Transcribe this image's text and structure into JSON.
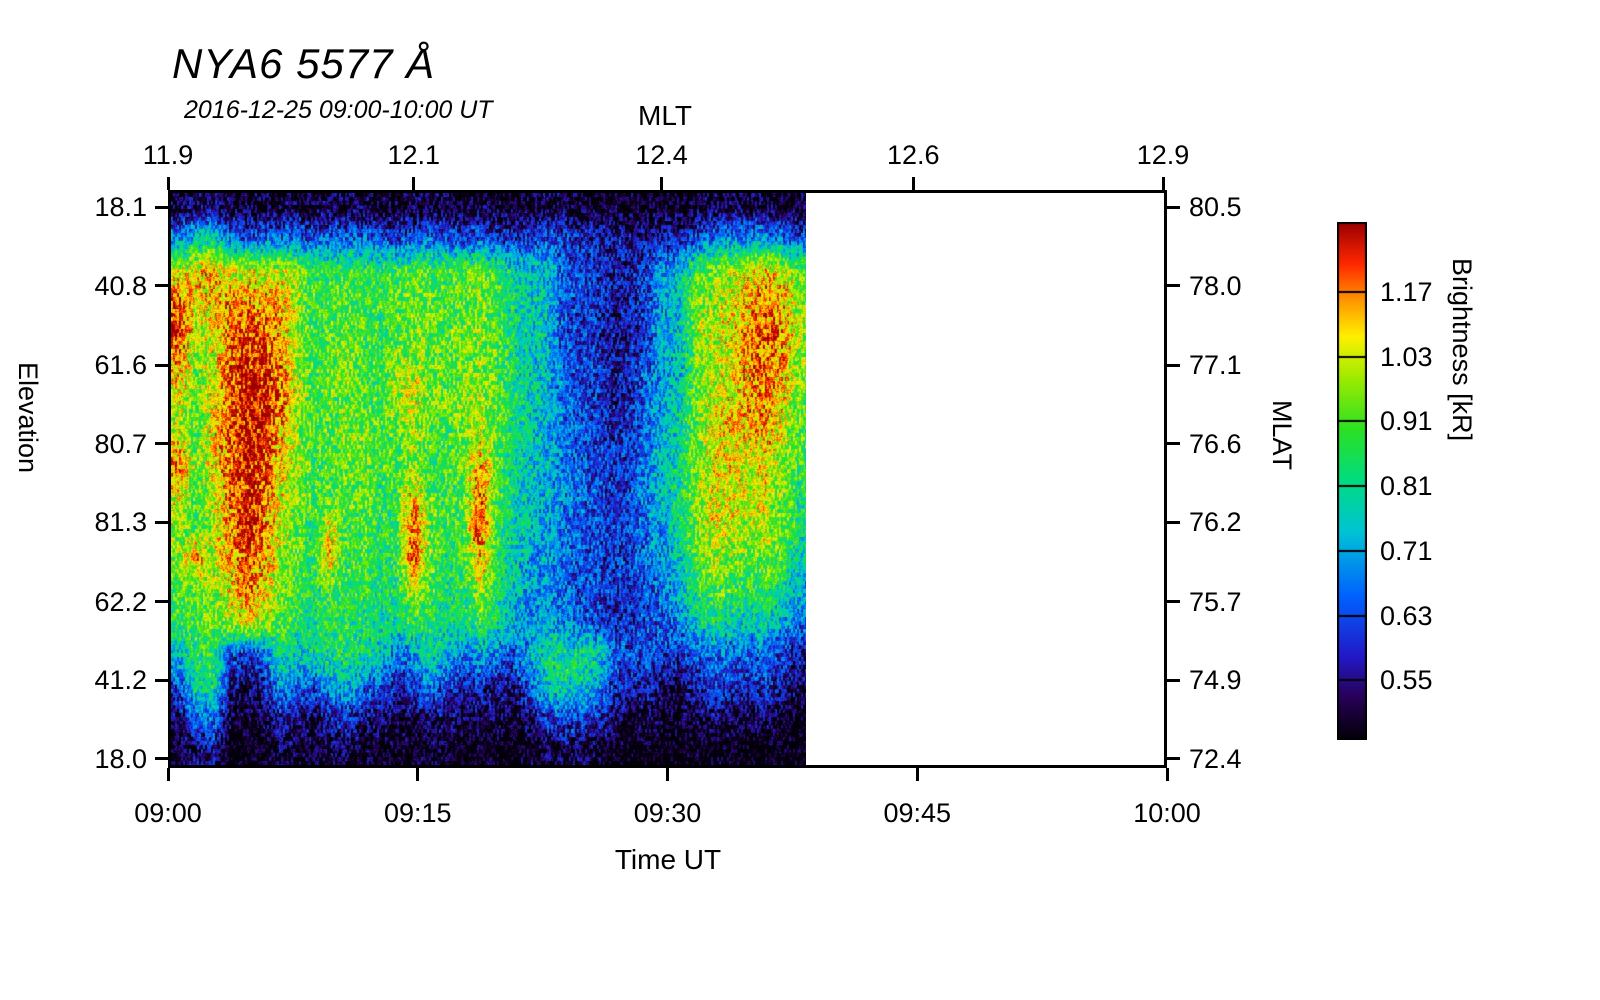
{
  "chart_data": {
    "type": "heatmap",
    "title": "NYA6 5577 Å",
    "subtitle": "2016-12-25 09:00-10:00 UT",
    "time_range": [
      "09:00",
      "10:00"
    ],
    "data_extent_fraction": 0.639,
    "value_scale": "log",
    "value_min": 0.48,
    "value_max": 1.28,
    "value_units": "kR",
    "axes": {
      "top": {
        "label": "MLT",
        "ticks": [
          {
            "label": "11.9",
            "f": 0.0
          },
          {
            "label": "12.1",
            "f": 0.246
          },
          {
            "label": "12.4",
            "f": 0.494
          },
          {
            "label": "12.6",
            "f": 0.746
          },
          {
            "label": "12.9",
            "f": 0.996
          }
        ]
      },
      "bottom": {
        "label": "Time UT",
        "ticks": [
          {
            "label": "09:00",
            "f": 0.0
          },
          {
            "label": "09:15",
            "f": 0.25
          },
          {
            "label": "09:30",
            "f": 0.5
          },
          {
            "label": "09:45",
            "f": 0.75
          },
          {
            "label": "10:00",
            "f": 1.0
          }
        ]
      },
      "left": {
        "label": "Elevation",
        "ticks": [
          {
            "label": "18.1",
            "f": 0.03
          },
          {
            "label": "40.8",
            "f": 0.166
          },
          {
            "label": "61.6",
            "f": 0.303
          },
          {
            "label": "80.7",
            "f": 0.439
          },
          {
            "label": "81.3",
            "f": 0.575
          },
          {
            "label": "62.2",
            "f": 0.712
          },
          {
            "label": "41.2",
            "f": 0.848
          },
          {
            "label": "18.0",
            "f": 0.984
          }
        ]
      },
      "right": {
        "label": "MLAT",
        "ticks": [
          {
            "label": "80.5",
            "f": 0.03
          },
          {
            "label": "78.0",
            "f": 0.166
          },
          {
            "label": "77.1",
            "f": 0.303
          },
          {
            "label": "76.6",
            "f": 0.439
          },
          {
            "label": "76.2",
            "f": 0.575
          },
          {
            "label": "75.7",
            "f": 0.712
          },
          {
            "label": "74.9",
            "f": 0.848
          },
          {
            "label": "72.4",
            "f": 0.984
          }
        ]
      }
    },
    "colorbar": {
      "label": "Brightness [kR]",
      "ticks": [
        {
          "label": "1.17",
          "f": 0.135
        },
        {
          "label": "1.03",
          "f": 0.26
        },
        {
          "label": "0.91",
          "f": 0.385
        },
        {
          "label": "0.81",
          "f": 0.51
        },
        {
          "label": "0.71",
          "f": 0.635
        },
        {
          "label": "0.63",
          "f": 0.76
        },
        {
          "label": "0.55",
          "f": 0.885
        }
      ]
    },
    "colormap_stops": [
      [
        0.0,
        2,
        0,
        8
      ],
      [
        0.08,
        40,
        0,
        85
      ],
      [
        0.16,
        35,
        25,
        200
      ],
      [
        0.28,
        0,
        100,
        255
      ],
      [
        0.4,
        0,
        195,
        215
      ],
      [
        0.5,
        0,
        220,
        130
      ],
      [
        0.6,
        45,
        225,
        35
      ],
      [
        0.7,
        160,
        235,
        0
      ],
      [
        0.78,
        255,
        240,
        0
      ],
      [
        0.85,
        255,
        150,
        0
      ],
      [
        0.92,
        255,
        40,
        0
      ],
      [
        1.0,
        155,
        0,
        0
      ]
    ],
    "grid_description": "Brightness in kR; 18 rows (elevation, top=18.1 N-horizon to bottom=18.0) x 38 columns (1-minute steps from 09:00 UT; data ends ~09:38, remainder of hour has no data and is blank/white).",
    "grid": [
      [
        0.5,
        0.52,
        0.53,
        0.5,
        0.49,
        0.5,
        0.5,
        0.5,
        0.49,
        0.5,
        0.5,
        0.5,
        0.49,
        0.49,
        0.5,
        0.5,
        0.49,
        0.49,
        0.5,
        0.49,
        0.48,
        0.49,
        0.5,
        0.5,
        0.49,
        0.49,
        0.48,
        0.48,
        0.48,
        0.48,
        0.48,
        0.49,
        0.5,
        0.5,
        0.5,
        0.5,
        0.49,
        0.49
      ],
      [
        0.68,
        0.75,
        0.78,
        0.66,
        0.62,
        0.64,
        0.65,
        0.64,
        0.62,
        0.64,
        0.65,
        0.64,
        0.62,
        0.6,
        0.62,
        0.64,
        0.62,
        0.6,
        0.62,
        0.6,
        0.58,
        0.6,
        0.62,
        0.6,
        0.58,
        0.57,
        0.55,
        0.55,
        0.56,
        0.57,
        0.58,
        0.62,
        0.66,
        0.68,
        0.68,
        0.7,
        0.66,
        0.62
      ],
      [
        1.0,
        1.05,
        1.1,
        1.0,
        1.0,
        1.0,
        1.0,
        0.95,
        0.85,
        0.85,
        0.86,
        0.85,
        0.84,
        0.86,
        0.88,
        0.88,
        0.86,
        0.88,
        0.9,
        0.86,
        0.76,
        0.74,
        0.72,
        0.62,
        0.6,
        0.58,
        0.55,
        0.56,
        0.6,
        0.68,
        0.72,
        0.88,
        0.92,
        0.95,
        1.02,
        1.05,
        1.0,
        0.9
      ],
      [
        1.2,
        1.0,
        1.05,
        1.1,
        1.1,
        1.1,
        1.08,
        0.95,
        0.85,
        0.86,
        0.88,
        0.86,
        0.84,
        0.88,
        0.9,
        0.88,
        0.86,
        0.88,
        0.9,
        0.86,
        0.78,
        0.75,
        0.72,
        0.62,
        0.6,
        0.58,
        0.55,
        0.55,
        0.6,
        0.7,
        0.73,
        0.92,
        0.95,
        1.0,
        1.08,
        1.15,
        1.1,
        0.95
      ],
      [
        1.22,
        0.95,
        1.0,
        1.12,
        1.2,
        1.18,
        1.1,
        0.95,
        0.85,
        0.86,
        0.9,
        0.87,
        0.85,
        0.88,
        0.9,
        0.88,
        0.87,
        0.9,
        0.92,
        0.88,
        0.78,
        0.75,
        0.72,
        0.6,
        0.58,
        0.57,
        0.54,
        0.55,
        0.6,
        0.7,
        0.72,
        0.95,
        0.97,
        1.0,
        1.1,
        1.18,
        1.12,
        0.95
      ],
      [
        1.05,
        0.92,
        0.98,
        1.15,
        1.25,
        1.22,
        1.12,
        0.95,
        0.86,
        0.9,
        0.95,
        0.88,
        0.85,
        0.92,
        0.95,
        0.9,
        0.88,
        0.9,
        0.92,
        0.88,
        0.8,
        0.75,
        0.72,
        0.63,
        0.6,
        0.6,
        0.55,
        0.56,
        0.62,
        0.68,
        0.72,
        0.9,
        0.95,
        1.0,
        1.1,
        1.15,
        1.1,
        0.92
      ],
      [
        1.0,
        0.9,
        1.0,
        1.18,
        1.25,
        1.25,
        1.15,
        0.98,
        0.87,
        0.88,
        0.9,
        0.88,
        0.86,
        0.95,
        1.0,
        0.92,
        0.9,
        0.92,
        0.95,
        0.9,
        0.82,
        0.76,
        0.72,
        0.64,
        0.6,
        0.58,
        0.55,
        0.56,
        0.63,
        0.7,
        0.75,
        0.92,
        1.0,
        1.02,
        1.08,
        1.12,
        1.05,
        0.9
      ],
      [
        0.95,
        0.88,
        1.02,
        1.2,
        1.25,
        1.22,
        1.1,
        0.95,
        0.86,
        0.88,
        0.92,
        0.9,
        0.86,
        0.9,
        0.95,
        0.88,
        0.86,
        0.9,
        0.95,
        0.88,
        0.8,
        0.75,
        0.7,
        0.64,
        0.62,
        0.6,
        0.56,
        0.58,
        0.64,
        0.7,
        0.76,
        0.9,
        1.0,
        1.05,
        1.05,
        1.08,
        1.0,
        0.88
      ],
      [
        1.15,
        0.9,
        1.0,
        1.18,
        1.25,
        1.2,
        1.05,
        0.95,
        0.85,
        0.88,
        0.9,
        0.92,
        0.85,
        0.88,
        0.92,
        0.85,
        0.85,
        0.9,
        1.1,
        0.88,
        0.78,
        0.74,
        0.7,
        0.65,
        0.62,
        0.6,
        0.57,
        0.6,
        0.66,
        0.72,
        0.78,
        0.92,
        1.0,
        1.02,
        1.0,
        1.02,
        0.95,
        0.85
      ],
      [
        1.0,
        0.88,
        0.98,
        1.15,
        1.25,
        1.18,
        1.0,
        0.92,
        0.85,
        0.86,
        0.88,
        0.9,
        0.84,
        0.86,
        1.05,
        0.88,
        0.84,
        0.88,
        1.15,
        0.86,
        0.78,
        0.72,
        0.7,
        0.66,
        0.63,
        0.6,
        0.58,
        0.6,
        0.66,
        0.72,
        0.8,
        0.95,
        1.0,
        1.0,
        0.98,
        1.0,
        0.92,
        0.82
      ],
      [
        0.95,
        0.85,
        0.95,
        1.1,
        1.25,
        1.15,
        0.98,
        0.9,
        0.84,
        1.0,
        0.86,
        0.88,
        0.84,
        0.85,
        1.2,
        0.9,
        0.84,
        0.86,
        1.2,
        0.85,
        0.76,
        0.72,
        0.68,
        0.65,
        0.62,
        0.6,
        0.58,
        0.6,
        0.65,
        0.7,
        0.78,
        0.92,
        1.0,
        0.98,
        0.95,
        0.98,
        0.9,
        0.8
      ],
      [
        0.92,
        1.1,
        0.95,
        1.05,
        1.2,
        1.1,
        0.95,
        0.88,
        0.83,
        1.05,
        0.85,
        0.86,
        0.82,
        0.84,
        1.15,
        0.88,
        0.82,
        0.85,
        1.1,
        0.84,
        0.75,
        0.7,
        0.68,
        0.64,
        0.62,
        0.6,
        0.58,
        0.6,
        0.64,
        0.68,
        0.75,
        0.88,
        0.95,
        0.92,
        0.9,
        0.92,
        0.85,
        0.75
      ],
      [
        0.88,
        0.9,
        0.92,
        1.0,
        1.15,
        1.05,
        0.92,
        0.85,
        0.82,
        0.85,
        0.84,
        0.84,
        0.8,
        0.82,
        0.95,
        0.85,
        0.8,
        0.82,
        0.95,
        0.82,
        0.73,
        0.68,
        0.66,
        0.63,
        0.6,
        0.6,
        0.57,
        0.58,
        0.62,
        0.65,
        0.7,
        0.82,
        0.88,
        0.85,
        0.82,
        0.85,
        0.78,
        0.7
      ],
      [
        0.82,
        0.85,
        0.9,
        0.95,
        1.0,
        0.95,
        0.88,
        0.82,
        0.8,
        0.82,
        0.82,
        0.8,
        0.78,
        0.78,
        0.85,
        0.82,
        0.78,
        0.8,
        0.85,
        0.78,
        0.7,
        0.66,
        0.68,
        0.66,
        0.62,
        0.6,
        0.56,
        0.57,
        0.6,
        0.62,
        0.66,
        0.75,
        0.78,
        0.76,
        0.74,
        0.76,
        0.7,
        0.64
      ],
      [
        0.72,
        0.82,
        0.85,
        0.62,
        0.58,
        0.62,
        0.78,
        0.75,
        0.78,
        0.8,
        0.82,
        0.78,
        0.75,
        0.65,
        0.68,
        0.78,
        0.72,
        0.65,
        0.7,
        0.65,
        0.62,
        0.7,
        0.78,
        0.8,
        0.78,
        0.76,
        0.62,
        0.6,
        0.62,
        0.58,
        0.58,
        0.62,
        0.66,
        0.64,
        0.62,
        0.64,
        0.6,
        0.56
      ],
      [
        0.6,
        0.78,
        0.8,
        0.55,
        0.52,
        0.55,
        0.68,
        0.65,
        0.6,
        0.68,
        0.72,
        0.65,
        0.62,
        0.56,
        0.58,
        0.66,
        0.6,
        0.55,
        0.58,
        0.55,
        0.54,
        0.62,
        0.75,
        0.78,
        0.75,
        0.72,
        0.58,
        0.55,
        0.56,
        0.52,
        0.52,
        0.56,
        0.6,
        0.58,
        0.56,
        0.58,
        0.55,
        0.52
      ],
      [
        0.52,
        0.62,
        0.66,
        0.5,
        0.48,
        0.5,
        0.56,
        0.54,
        0.52,
        0.55,
        0.58,
        0.54,
        0.52,
        0.5,
        0.5,
        0.54,
        0.52,
        0.5,
        0.5,
        0.5,
        0.49,
        0.52,
        0.6,
        0.62,
        0.6,
        0.58,
        0.52,
        0.5,
        0.5,
        0.48,
        0.48,
        0.5,
        0.52,
        0.5,
        0.5,
        0.52,
        0.5,
        0.48
      ],
      [
        0.48,
        0.52,
        0.54,
        0.47,
        0.46,
        0.47,
        0.5,
        0.49,
        0.48,
        0.5,
        0.5,
        0.49,
        0.48,
        0.47,
        0.47,
        0.49,
        0.48,
        0.47,
        0.47,
        0.47,
        0.46,
        0.48,
        0.5,
        0.5,
        0.5,
        0.49,
        0.47,
        0.46,
        0.47,
        0.46,
        0.46,
        0.47,
        0.48,
        0.47,
        0.46,
        0.47,
        0.46,
        0.46
      ]
    ]
  },
  "colors": {
    "background": "#ffffff",
    "frame": "#000000",
    "text": "#000000"
  }
}
